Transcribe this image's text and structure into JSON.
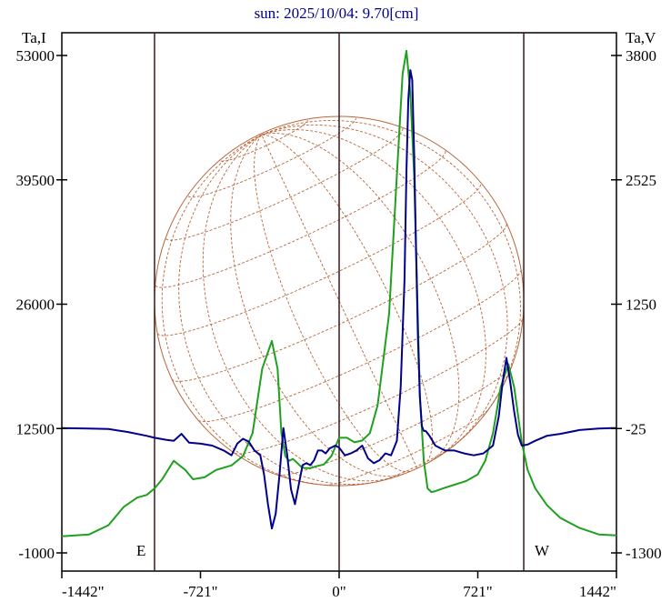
{
  "title": "sun: 2025/10/04: 9.70[cm]",
  "chart_data": {
    "type": "line",
    "title": "sun: 2025/10/04: 9.70[cm]",
    "x_unit": "arcsec",
    "x_ticks": [
      -1442,
      -721,
      0,
      721,
      1442
    ],
    "x_tick_labels": [
      "-1442\"",
      "-721\"",
      "0\"",
      "721\"",
      "1442\""
    ],
    "xlim": [
      -1442,
      1442
    ],
    "left_axis": {
      "label": "Ta,I",
      "ylim": [
        -1000,
        53000
      ],
      "ticks": [
        -1000,
        12500,
        26000,
        39500,
        53000
      ],
      "tick_labels": [
        "-1000",
        "12500",
        "26000",
        "39500",
        "53000"
      ]
    },
    "right_axis": {
      "label": "Ta,V",
      "ylim": [
        -1300,
        3800
      ],
      "ticks": [
        -1300,
        -25,
        1250,
        2525,
        3800
      ],
      "tick_labels": [
        "-1300",
        "-25",
        "1250",
        "2525",
        "3800"
      ]
    },
    "vertical_lines_x": [
      -960,
      0,
      960
    ],
    "east_label": "E",
    "west_label": "W",
    "grid": false,
    "sun_disk": {
      "center_x": 0,
      "radius_x": 960
    },
    "series": [
      {
        "axis": "left",
        "color": "#1fa01f",
        "x": [
          -1442,
          -1300,
          -1200,
          -1120,
          -1050,
          -1000,
          -960,
          -920,
          -860,
          -800,
          -760,
          -700,
          -640,
          -560,
          -500,
          -450,
          -400,
          -350,
          -320,
          -300,
          -280,
          -260,
          -240,
          -220,
          -200,
          -180,
          -150,
          -120,
          -80,
          -40,
          0,
          40,
          80,
          120,
          160,
          200,
          260,
          300,
          330,
          350,
          370,
          390,
          400,
          410,
          420,
          440,
          460,
          480,
          500,
          540,
          600,
          660,
          720,
          760,
          800,
          840,
          880,
          910,
          930,
          950,
          980,
          1020,
          1080,
          1150,
          1250,
          1350,
          1442
        ],
        "y": [
          800,
          1000,
          2000,
          4000,
          5000,
          5300,
          6000,
          7000,
          9000,
          8000,
          7000,
          7200,
          8000,
          8500,
          9500,
          12000,
          19000,
          22000,
          19000,
          12000,
          9500,
          9000,
          9200,
          8800,
          8400,
          8200,
          8200,
          8400,
          8600,
          9500,
          11500,
          11500,
          11000,
          11200,
          12000,
          15000,
          25000,
          40000,
          51000,
          53500,
          49000,
          40000,
          32000,
          24000,
          16000,
          9000,
          6000,
          5600,
          5700,
          6000,
          6400,
          6800,
          7500,
          9000,
          12000,
          17000,
          19500,
          17000,
          14000,
          11000,
          8000,
          6000,
          4200,
          2800,
          1700,
          1000,
          900
        ]
      },
      {
        "axis": "right",
        "color": "#00008b",
        "x": [
          -1442,
          -1300,
          -1200,
          -1100,
          -1000,
          -960,
          -900,
          -860,
          -820,
          -780,
          -720,
          -660,
          -600,
          -560,
          -530,
          -500,
          -470,
          -440,
          -410,
          -390,
          -370,
          -350,
          -330,
          -310,
          -290,
          -270,
          -250,
          -230,
          -210,
          -190,
          -170,
          -150,
          -130,
          -110,
          -90,
          -70,
          -50,
          -20,
          0,
          30,
          60,
          90,
          120,
          150,
          180,
          210,
          240,
          270,
          300,
          320,
          340,
          350,
          360,
          370,
          380,
          390,
          400,
          410,
          420,
          430,
          440,
          450,
          470,
          500,
          550,
          600,
          650,
          700,
          750,
          800,
          830,
          850,
          870,
          890,
          910,
          930,
          950,
          980,
          1020,
          1080,
          1150,
          1250,
          1350,
          1420,
          1442
        ],
        "y": [
          -20,
          -25,
          -30,
          -60,
          -100,
          -120,
          -140,
          -150,
          -80,
          -170,
          -180,
          -200,
          -250,
          -300,
          -180,
          -130,
          -160,
          -250,
          -300,
          -500,
          -800,
          -1050,
          -900,
          -500,
          -20,
          -300,
          -650,
          -800,
          -600,
          -400,
          -380,
          -400,
          -350,
          -250,
          -250,
          -280,
          -230,
          -200,
          -220,
          -300,
          -280,
          -250,
          -200,
          -330,
          -380,
          -350,
          -280,
          -300,
          -150,
          400,
          1500,
          2600,
          3350,
          3650,
          3550,
          2800,
          1800,
          900,
          300,
          0,
          -50,
          -50,
          -100,
          -200,
          -250,
          -250,
          -280,
          -300,
          -280,
          -200,
          100,
          450,
          700,
          450,
          150,
          -90,
          -200,
          -190,
          -150,
          -100,
          -80,
          -40,
          -25,
          -20,
          -20
        ]
      }
    ]
  }
}
